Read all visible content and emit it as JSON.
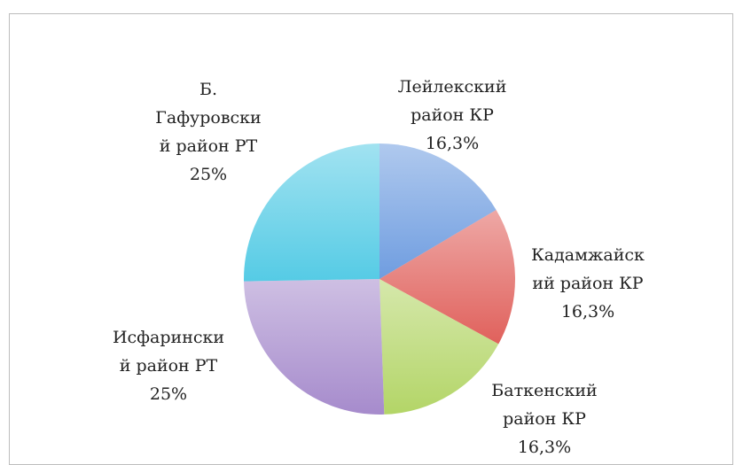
{
  "chart_data": {
    "type": "pie",
    "categories": [
      "Лейлекский район КР",
      "Кадамжайский район КР",
      "Баткенский район КР",
      "Исфаринский район РТ",
      "Б. Гафуровский район РТ"
    ],
    "values": [
      16.3,
      16.3,
      16.3,
      25,
      25
    ],
    "value_labels": [
      "16,3%",
      "16,3%",
      "16,3%",
      "25%",
      "25%"
    ],
    "colors": [
      "#6f9de0",
      "#e0615c",
      "#b3d567",
      "#a68bcc",
      "#55cbe5"
    ]
  }
}
